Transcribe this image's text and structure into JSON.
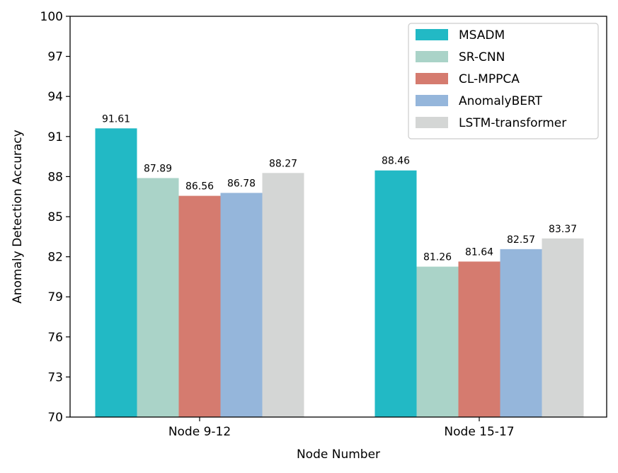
{
  "chart_data": {
    "type": "bar",
    "title": "",
    "xlabel": "Node Number",
    "ylabel": "Anomaly Detection Accuracy",
    "ylim": [
      70,
      100
    ],
    "yticks": [
      70,
      73,
      76,
      79,
      82,
      85,
      88,
      91,
      94,
      97,
      100
    ],
    "categories": [
      "Node 9-12",
      "Node 15-17"
    ],
    "series": [
      {
        "name": "MSADM",
        "color": "#22b9c5",
        "values": [
          91.61,
          88.46
        ]
      },
      {
        "name": "SR-CNN",
        "color": "#aad3c8",
        "values": [
          87.89,
          81.26
        ]
      },
      {
        "name": "CL-MPPCA",
        "color": "#d57b6f",
        "values": [
          86.56,
          81.64
        ]
      },
      {
        "name": "AnomalyBERT",
        "color": "#95b6db",
        "values": [
          86.78,
          82.57
        ]
      },
      {
        "name": "LSTM-transformer",
        "color": "#d4d6d5",
        "values": [
          88.27,
          83.37
        ]
      }
    ],
    "legend_position": "top-right",
    "grid": false
  }
}
